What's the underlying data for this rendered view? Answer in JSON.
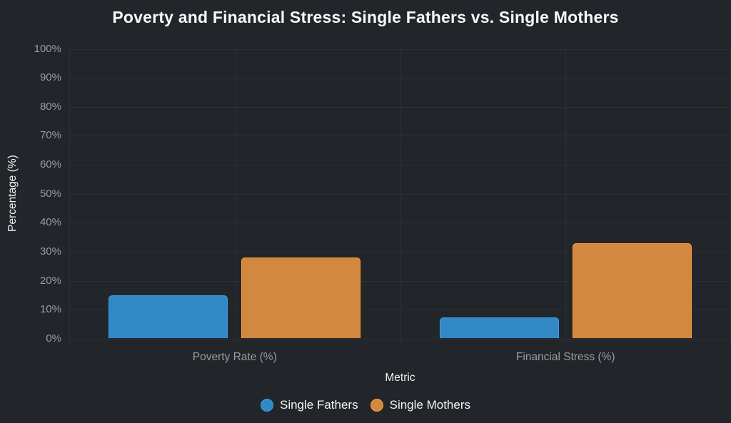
{
  "colors": {
    "background": "#222529",
    "grid": "#2c2f34",
    "tick_text": "#9b9ca0",
    "text": "#f2f3f4",
    "title_text": "#f7f8f9"
  },
  "chart_data": {
    "type": "bar",
    "title": "Poverty and Financial Stress: Single Fathers vs. Single Mothers",
    "xlabel": "Metric",
    "ylabel": "Percentage (%)",
    "categories": [
      "Poverty Rate (%)",
      "Financial Stress (%)"
    ],
    "series": [
      {
        "name": "Single Fathers",
        "values": [
          15,
          7.5
        ],
        "color": "#3289c6",
        "border_color": "#36a2eb"
      },
      {
        "name": "Single Mothers",
        "values": [
          28,
          33
        ],
        "color": "#d2883e",
        "border_color": "#ff9f40"
      }
    ],
    "ylim": [
      0,
      100
    ],
    "ytick_step": 10,
    "ytick_labels": [
      "0%",
      "10%",
      "20%",
      "30%",
      "40%",
      "50%",
      "60%",
      "70%",
      "80%",
      "90%",
      "100%"
    ],
    "grid": true,
    "legend_position": "bottom"
  }
}
